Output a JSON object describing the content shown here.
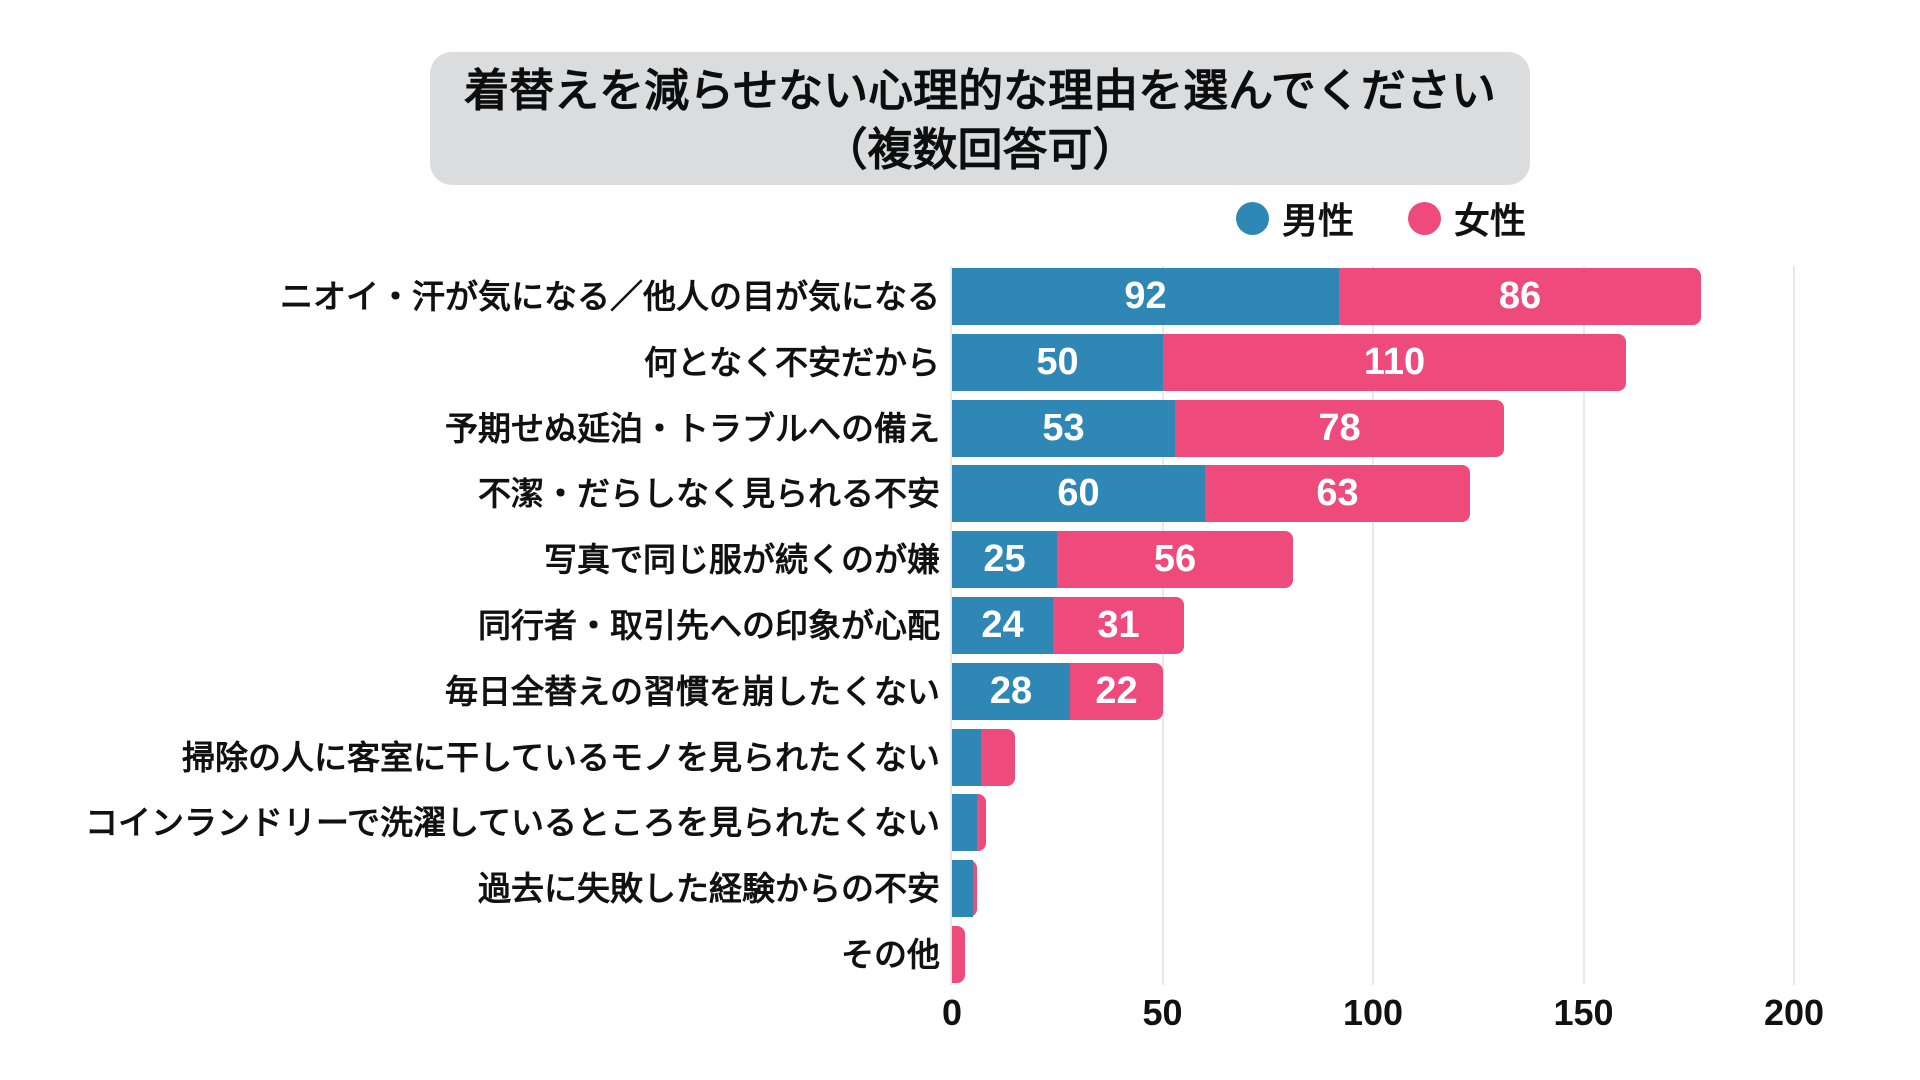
{
  "title": {
    "line1": "着替えを減らせない心理的な理由を選んでください",
    "line2": "（複数回答可）"
  },
  "legend": [
    {
      "label": "男性",
      "color": "#2f87b5"
    },
    {
      "label": "女性",
      "color": "#ee4a7b"
    }
  ],
  "colors": {
    "male": "#2f87b5",
    "female": "#ee4a7b",
    "title_background": "#dbdcdd",
    "gridline": "#e9e9e9",
    "value_text": "#ffffff"
  },
  "chart_data": {
    "type": "bar",
    "orientation": "horizontal",
    "stacked": true,
    "title": "着替えを減らせない心理的な理由を選んでください（複数回答可）",
    "categories": [
      "ニオイ・汗が気になる／他人の目が気になる",
      "何となく不安だから",
      "予期せぬ延泊・トラブルへの備え",
      "不潔・だらしなく見られる不安",
      "写真で同じ服が続くのが嫌",
      "同行者・取引先への印象が心配",
      "毎日全替えの習慣を崩したくない",
      "掃除の人に客室に干しているモノを見られたくない",
      "コインランドリーで洗濯しているところを見られたくない",
      "過去に失敗した経験からの不安",
      "その他"
    ],
    "series": [
      {
        "name": "男性",
        "color": "#2f87b5",
        "values": [
          92,
          50,
          53,
          60,
          25,
          24,
          28,
          7,
          6,
          5,
          0
        ]
      },
      {
        "name": "女性",
        "color": "#ee4a7b",
        "values": [
          86,
          110,
          78,
          63,
          56,
          31,
          22,
          8,
          2,
          1,
          3
        ]
      }
    ],
    "xlim": [
      0,
      200
    ],
    "xticks": [
      0,
      50,
      100,
      150,
      200
    ],
    "value_labels_min": 20,
    "grid": true,
    "legend_position": "top-right"
  }
}
